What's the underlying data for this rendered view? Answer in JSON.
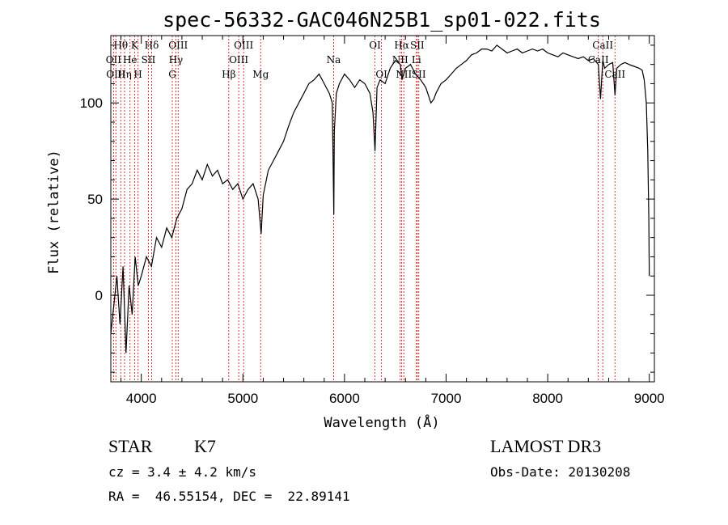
{
  "chart_data": {
    "type": "line",
    "title": "spec-56332-GAC046N25B1_sp01-022.fits",
    "xlabel": "Wavelength (Å)",
    "ylabel": "Flux (relative)",
    "xlim": [
      3700,
      9050
    ],
    "ylim": [
      -45,
      135
    ],
    "xticks": [
      4000,
      5000,
      6000,
      7000,
      8000,
      9000
    ],
    "xtick_labels": [
      "4000",
      "5000",
      "6000",
      "7000",
      "8000",
      "9000"
    ],
    "yticks": [
      0,
      50,
      100
    ],
    "ytick_labels": [
      "0",
      "50",
      "100"
    ],
    "series": [
      {
        "name": "flux",
        "x": [
          3700,
          3730,
          3760,
          3790,
          3820,
          3850,
          3880,
          3910,
          3940,
          3970,
          4000,
          4050,
          4100,
          4150,
          4200,
          4250,
          4300,
          4350,
          4400,
          4450,
          4500,
          4550,
          4600,
          4650,
          4700,
          4750,
          4800,
          4850,
          4900,
          4950,
          5000,
          5050,
          5100,
          5150,
          5180,
          5200,
          5250,
          5300,
          5350,
          5400,
          5450,
          5500,
          5550,
          5600,
          5650,
          5700,
          5750,
          5800,
          5850,
          5880,
          5890,
          5895,
          5900,
          5920,
          5950,
          6000,
          6050,
          6100,
          6150,
          6200,
          6250,
          6280,
          6300,
          6320,
          6350,
          6400,
          6450,
          6500,
          6550,
          6565,
          6600,
          6650,
          6700,
          6750,
          6800,
          6850,
          6880,
          6900,
          6950,
          7000,
          7050,
          7100,
          7150,
          7200,
          7250,
          7300,
          7350,
          7400,
          7450,
          7500,
          7550,
          7600,
          7650,
          7700,
          7750,
          7800,
          7850,
          7900,
          7950,
          8000,
          8050,
          8100,
          8150,
          8200,
          8250,
          8300,
          8350,
          8400,
          8450,
          8498,
          8520,
          8542,
          8560,
          8600,
          8640,
          8662,
          8680,
          8720,
          8760,
          8800,
          8850,
          8900,
          8930,
          8950,
          8970,
          8985,
          8995,
          9000
        ],
        "y": [
          -20,
          -5,
          10,
          -15,
          15,
          -30,
          5,
          -10,
          20,
          5,
          10,
          20,
          15,
          30,
          25,
          35,
          30,
          40,
          45,
          55,
          58,
          65,
          60,
          68,
          62,
          65,
          58,
          60,
          55,
          58,
          50,
          55,
          58,
          50,
          32,
          52,
          65,
          70,
          75,
          80,
          88,
          95,
          100,
          105,
          110,
          112,
          115,
          110,
          105,
          100,
          60,
          42,
          85,
          105,
          110,
          115,
          112,
          108,
          112,
          110,
          105,
          95,
          75,
          108,
          112,
          110,
          118,
          122,
          120,
          112,
          118,
          120,
          115,
          112,
          108,
          100,
          102,
          105,
          110,
          112,
          115,
          118,
          120,
          122,
          125,
          126,
          128,
          128,
          127,
          130,
          128,
          126,
          127,
          128,
          126,
          127,
          128,
          127,
          128,
          126,
          125,
          124,
          126,
          125,
          124,
          123,
          124,
          122,
          123,
          120,
          102,
          122,
          118,
          120,
          121,
          104,
          118,
          120,
          121,
          120,
          119,
          118,
          117,
          112,
          100,
          75,
          40,
          10
        ]
      }
    ],
    "line_markers": [
      {
        "name": "Hθ",
        "x": 3798,
        "row": 1
      },
      {
        "name": "OII",
        "x": 3727,
        "row": 2
      },
      {
        "name": "OIII",
        "x": 3750,
        "row": 3
      },
      {
        "name": "K",
        "x": 3934,
        "row": 1
      },
      {
        "name": "He",
        "x": 3889,
        "row": 2
      },
      {
        "name": "Hη",
        "x": 3835,
        "row": 3
      },
      {
        "name": "Hδ",
        "x": 4102,
        "row": 1
      },
      {
        "name": "SII",
        "x": 4070,
        "row": 2
      },
      {
        "name": "H",
        "x": 3968,
        "row": 3
      },
      {
        "name": "OIII",
        "x": 4363,
        "row": 1
      },
      {
        "name": "Hγ",
        "x": 4340,
        "row": 2
      },
      {
        "name": "G",
        "x": 4305,
        "row": 3
      },
      {
        "name": "OIII",
        "x": 5007,
        "row": 1
      },
      {
        "name": "OIII",
        "x": 4959,
        "row": 2
      },
      {
        "name": "Hβ",
        "x": 4861,
        "row": 3
      },
      {
        "name": "Mg",
        "x": 5175,
        "row": 3
      },
      {
        "name": "Na",
        "x": 5893,
        "row": 2
      },
      {
        "name": "OI",
        "x": 6300,
        "row": 1
      },
      {
        "name": "OI",
        "x": 6364,
        "row": 3
      },
      {
        "name": "Hα",
        "x": 6563,
        "row": 1
      },
      {
        "name": "NII",
        "x": 6548,
        "row": 2
      },
      {
        "name": "NII",
        "x": 6584,
        "row": 3
      },
      {
        "name": "SII",
        "x": 6716,
        "row": 1
      },
      {
        "name": "Li",
        "x": 6708,
        "row": 2
      },
      {
        "name": "SII",
        "x": 6731,
        "row": 3
      },
      {
        "name": "CaII",
        "x": 8542,
        "row": 1
      },
      {
        "name": "CaII",
        "x": 8498,
        "row": 2
      },
      {
        "name": "CaII",
        "x": 8662,
        "row": 3
      }
    ],
    "grid": false,
    "marker_color": "#cc2222"
  },
  "info": {
    "object_class": "STAR",
    "subclass": "K7",
    "survey": "LAMOST DR3",
    "cz": "cz = 3.4 ± 4.2 km/s",
    "obs_date": "Obs-Date: 20130208",
    "coords": "RA =  46.55154, DEC =  22.89141"
  }
}
